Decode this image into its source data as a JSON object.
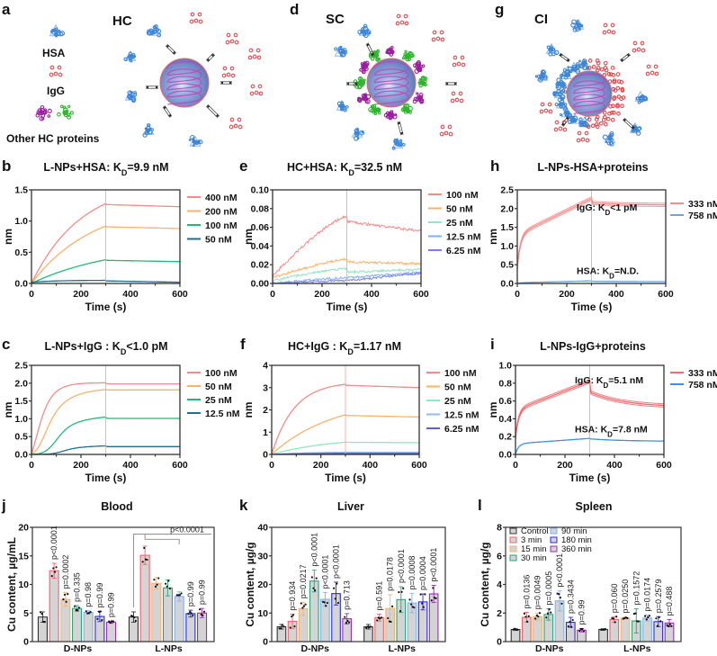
{
  "figure": {
    "schematics": [
      {
        "panel": "a",
        "label": "HC",
        "legend": [
          "HSA",
          "IgG",
          "Other HC proteins"
        ]
      },
      {
        "panel": "d",
        "label": "SC"
      },
      {
        "panel": "g",
        "label": "CI"
      }
    ],
    "colors": {
      "hsa_protein": "#3d86d6",
      "igg_protein": "#e0474c",
      "other_purple": "#9b1fa0",
      "other_green": "#2fb52f",
      "nanoparticle": "#7f95cc",
      "helix": "#b548b5"
    }
  },
  "chart_data": [
    {
      "panel": "b",
      "type": "line",
      "title": "L-NPs+HSA: K",
      "title_sub": "D",
      "title_tail": "=9.9 nM",
      "xlabel": "Time (s)",
      "ylabel": "nm",
      "xlim": [
        0,
        600
      ],
      "ylim": [
        0,
        1.5
      ],
      "xticks": [
        0,
        200,
        400,
        600
      ],
      "yticks": [
        "0.0",
        "0.5",
        "1.0",
        "1.5"
      ],
      "yticks_v": [
        0,
        0.5,
        1.0,
        1.5
      ],
      "switch_time": 300,
      "model": "exp",
      "series": [
        {
          "name": "400 nM",
          "color": "#f28b8b",
          "peak": 1.28,
          "end": 1.23,
          "k": 0.005,
          "noise": 0
        },
        {
          "name": "200 nM",
          "color": "#f8b26a",
          "peak": 0.92,
          "end": 0.88,
          "k": 0.004,
          "noise": 0
        },
        {
          "name": "100 nM",
          "color": "#21b974",
          "peak": 0.38,
          "end": 0.35,
          "k": 0.003,
          "noise": 0
        },
        {
          "name": "50 nM",
          "color": "#1f6e93",
          "peak": 0.05,
          "end": 0.02,
          "k": 0.01,
          "noise": 0,
          "offset": 0.02
        }
      ]
    },
    {
      "panel": "e",
      "type": "line",
      "title": "HC+HSA: K",
      "title_sub": "D",
      "title_tail": "=32.5 nM",
      "xlabel": "Time (s)",
      "ylabel": "nm",
      "xlim": [
        0,
        600
      ],
      "ylim": [
        0,
        0.1
      ],
      "xticks": [
        0,
        200,
        400,
        600
      ],
      "yticks": [
        "0.00",
        "0.02",
        "0.04",
        "0.06",
        "0.08",
        "0.10"
      ],
      "yticks_v": [
        0,
        0.02,
        0.04,
        0.06,
        0.08,
        0.1
      ],
      "switch_time": 300,
      "model": "lin",
      "series": [
        {
          "name": "100 nM",
          "color": "#f28b8b",
          "start": 0.008,
          "peak": 0.072,
          "drop": 0.066,
          "end": 0.056,
          "noise": 0.0015
        },
        {
          "name": "50 nM",
          "color": "#f8b26a",
          "start": 0.006,
          "peak": 0.026,
          "drop": 0.023,
          "end": 0.021,
          "noise": 0.0012
        },
        {
          "name": "25 nM",
          "color": "#93e6c4",
          "start": 0.003,
          "peak": 0.016,
          "drop": 0.012,
          "end": 0.015,
          "noise": 0.0012
        },
        {
          "name": "12.5 nM",
          "color": "#7fb2f0",
          "start": 0.0,
          "peak": 0.006,
          "drop": 0.006,
          "end": 0.012,
          "noise": 0.0012
        },
        {
          "name": "6.25 nM",
          "color": "#7d7df2",
          "start": 0.0,
          "peak": 0.003,
          "drop": 0.003,
          "end": 0.011,
          "noise": 0.001
        }
      ]
    },
    {
      "panel": "h",
      "type": "line",
      "title": "L-NPs-HSA+proteins",
      "xlabel": "Time (s)",
      "ylabel": "nm",
      "xlim": [
        0,
        600
      ],
      "ylim": [
        0,
        2.5
      ],
      "xticks": [
        0,
        200,
        400,
        600
      ],
      "yticks": [
        "0.0",
        "0.5",
        "1.0",
        "1.5",
        "2.0",
        "2.5"
      ],
      "yticks_v": [
        0,
        0.5,
        1.0,
        1.5,
        2.0,
        2.5
      ],
      "switch_time": 300,
      "model": "biphasic",
      "annotations": [
        {
          "text": "IgG: K",
          "sub": "D",
          "tail": "<1 pM",
          "at": [
            240,
            1.95
          ]
        },
        {
          "text": "HSA: K",
          "sub": "D",
          "tail": "=N.D.",
          "at": [
            240,
            0.25
          ]
        }
      ],
      "series": [
        {
          "name": "333 nM",
          "color": "#f28b8b",
          "start": 0.4,
          "fast": 1.3,
          "peak": 2.27,
          "drop": 2.15,
          "end": 2.1,
          "triple": true
        },
        {
          "name": "758 nM",
          "color": "#6aa6ea",
          "start": 0.0,
          "fast": 0.02,
          "peak": 0.07,
          "drop": 0.06,
          "end": 0.05,
          "triple": false
        }
      ]
    },
    {
      "panel": "c",
      "type": "line",
      "title": "L-NPs+IgG : K",
      "title_sub": "D",
      "title_tail": "<1.0 pM",
      "xlabel": "Time (s)",
      "ylabel": "nm",
      "xlim": [
        0,
        600
      ],
      "ylim": [
        0,
        2.5
      ],
      "xticks": [
        0,
        200,
        400,
        600
      ],
      "yticks": [
        "0.0",
        "0.5",
        "1.0",
        "1.5",
        "2.0",
        "2.5"
      ],
      "yticks_v": [
        0,
        0.5,
        1.0,
        1.5,
        2.0,
        2.5
      ],
      "switch_time": 300,
      "model": "sigmoid",
      "series": [
        {
          "name": "100 nM",
          "color": "#f28b8b",
          "peak": 2.01,
          "end": 1.98,
          "k": 0.022,
          "lag": 0
        },
        {
          "name": "50 nM",
          "color": "#f8b26a",
          "peak": 1.82,
          "end": 1.81,
          "k": 0.012,
          "lag": 40
        },
        {
          "name": "25 nM",
          "color": "#21b974",
          "peak": 1.05,
          "end": 1.01,
          "k": 0.009,
          "lag": 90
        },
        {
          "name": "12.5 nM",
          "color": "#1f6e93",
          "peak": 0.24,
          "end": 0.22,
          "k": 0.007,
          "lag": 120
        }
      ]
    },
    {
      "panel": "f",
      "type": "line",
      "title": "HC+IgG : K",
      "title_sub": "D",
      "title_tail": "=1.17 nM",
      "xlabel": "Time (s)",
      "ylabel": "nm",
      "xlim": [
        0,
        600
      ],
      "ylim": [
        0,
        4
      ],
      "xticks": [
        0,
        200,
        400,
        600
      ],
      "yticks": [
        "0",
        "1",
        "2",
        "3",
        "4"
      ],
      "yticks_v": [
        0,
        1,
        2,
        3,
        4
      ],
      "switch_time": 300,
      "model": "exp",
      "series": [
        {
          "name": "100 nM",
          "color": "#f28b8b",
          "peak": 3.15,
          "end": 3.0,
          "k": 0.011,
          "noise": 0
        },
        {
          "name": "50 nM",
          "color": "#f8b26a",
          "peak": 1.78,
          "end": 1.68,
          "k": 0.004,
          "noise": 0
        },
        {
          "name": "25 nM",
          "color": "#93e6c4",
          "peak": 0.55,
          "end": 0.53,
          "k": 0.004,
          "noise": 0
        },
        {
          "name": "12.5 nM",
          "color": "#8fbcf2",
          "peak": 0.1,
          "end": 0.1,
          "k": 0.006,
          "noise": 0
        },
        {
          "name": "6.25 nM",
          "color": "#5b62d9",
          "peak": 0.05,
          "end": 0.05,
          "k": 0.006,
          "noise": 0
        }
      ]
    },
    {
      "panel": "i",
      "type": "line",
      "title": "L-NPs-IgG+proteins",
      "xlabel": "Time (s)",
      "ylabel": "nm",
      "xlim": [
        0,
        600
      ],
      "ylim": [
        0,
        1.0
      ],
      "xticks": [
        0,
        200,
        400,
        600
      ],
      "yticks": [
        "0.0",
        "0.2",
        "0.4",
        "0.6",
        "0.8",
        "1.0"
      ],
      "yticks_v": [
        0,
        0.2,
        0.4,
        0.6,
        0.8,
        1.0
      ],
      "switch_time": 300,
      "model": "biphasic",
      "annotations": [
        {
          "text": "IgG: K",
          "sub": "D",
          "tail": "=5.1 nM",
          "at": [
            240,
            0.8
          ]
        },
        {
          "text": "HSA: K",
          "sub": "D",
          "tail": "=7.8 nM",
          "at": [
            240,
            0.25
          ]
        }
      ],
      "series": [
        {
          "name": "333 nM",
          "color": "#f06b6f",
          "start": 0.18,
          "fast": 0.5,
          "peak": 0.82,
          "drop": 0.7,
          "end": 0.55,
          "triple": true
        },
        {
          "name": "758 nM",
          "color": "#3b8ff0",
          "start": 0.0,
          "fast": 0.12,
          "peak": 0.18,
          "drop": 0.175,
          "end": 0.15,
          "triple": false
        }
      ]
    },
    {
      "panel": "j",
      "type": "bar",
      "title": "Blood",
      "ylabel": "Cu content, µg/mL",
      "ylim": [
        0,
        20
      ],
      "yticks": [
        "0",
        "5",
        "10",
        "15",
        "20"
      ],
      "yticks_v": [
        0,
        5,
        10,
        15,
        20
      ],
      "groups": [
        "D-NPs",
        "L-NPs"
      ],
      "series_names": [
        "Control",
        "3 min",
        "15 min",
        "30 min",
        "90 min",
        "180 min",
        "360 min"
      ],
      "series_colors": [
        "#333333",
        "#f0646a",
        "#f8b26a",
        "#2aa57a",
        "#7fb2f0",
        "#2a2ae0",
        "#9b2fb0"
      ],
      "values": [
        [
          4.3,
          12.4,
          7.4,
          5.8,
          5.1,
          4.4,
          3.4
        ],
        [
          4.3,
          15.1,
          10.2,
          9.4,
          7.9,
          4.9,
          5.0
        ]
      ],
      "errors": [
        [
          0.9,
          1.3,
          1.2,
          0.5,
          0.3,
          0.9,
          0.2
        ],
        [
          0.9,
          1.6,
          1.0,
          1.4,
          0.8,
          0.6,
          0.8
        ]
      ],
      "pvalues": [
        [
          "",
          "p<0.0001",
          "p=0.0002",
          "p=0.335",
          "p=0.98",
          "p=0.99",
          "p=0.99"
        ],
        [
          "",
          "",
          "",
          "",
          "",
          "p=0.99",
          "p=0.99"
        ]
      ],
      "bracket": {
        "text": "p<0.0001"
      }
    },
    {
      "panel": "k",
      "type": "bar",
      "title": "Liver",
      "ylabel": "Cu content, µg/g",
      "ylim": [
        0,
        40
      ],
      "yticks": [
        "0",
        "10",
        "20",
        "30",
        "40"
      ],
      "yticks_v": [
        0,
        10,
        20,
        30,
        40
      ],
      "groups": [
        "D-NPs",
        "L-NPs"
      ],
      "series_names": [
        "Control",
        "3 min",
        "15 min",
        "30 min",
        "90 min",
        "180 min",
        "360 min"
      ],
      "series_colors": [
        "#333333",
        "#f0646a",
        "#f8b26a",
        "#2aa57a",
        "#7fb2f0",
        "#2a2ae0",
        "#9b2fb0"
      ],
      "values": [
        [
          5.2,
          7.1,
          11.5,
          21.2,
          14.8,
          16.8,
          8.0
        ],
        [
          5.2,
          8.4,
          11.6,
          14.7,
          13.5,
          13.9,
          16.7
        ]
      ],
      "errors": [
        [
          0.8,
          2.5,
          2.3,
          3.8,
          2.4,
          4.0,
          1.8
        ],
        [
          0.8,
          1.2,
          4.8,
          4.5,
          3.4,
          2.8,
          3.0
        ]
      ],
      "pvalues": [
        [
          "",
          "p=0.934",
          "p=0.0217",
          "p<0.0001",
          "p<0.0001",
          "p<0.0001",
          "p=0.713"
        ],
        [
          "",
          "p=0.591",
          "p=0.0178",
          "p<0.0001",
          "p=0.0008",
          "p=0.0004",
          "p<0.0001"
        ]
      ]
    },
    {
      "panel": "l",
      "type": "bar",
      "title": "Spleen",
      "ylabel": "Cu content, µg/g",
      "ylim": [
        0,
        8
      ],
      "yticks": [
        "0",
        "2",
        "4",
        "6",
        "8"
      ],
      "yticks_v": [
        0,
        2,
        4,
        6,
        8
      ],
      "groups": [
        "D-NPs",
        "L-NPs"
      ],
      "series_names": [
        "Control",
        "3 min",
        "15 min",
        "30 min",
        "90 min",
        "180 min",
        "360 min"
      ],
      "series_colors": [
        "#333333",
        "#f0646a",
        "#f8b26a",
        "#2aa57a",
        "#7fb2f0",
        "#2a2ae0",
        "#9b2fb0"
      ],
      "values": [
        [
          0.85,
          1.7,
          1.75,
          1.9,
          2.85,
          1.35,
          0.8
        ],
        [
          0.85,
          1.55,
          1.65,
          1.45,
          1.65,
          1.4,
          1.3
        ]
      ],
      "errors": [
        [
          0.05,
          0.35,
          0.25,
          0.4,
          0.7,
          0.35,
          0.12
        ],
        [
          0.05,
          0.2,
          0.08,
          0.85,
          0.2,
          0.35,
          0.25
        ]
      ],
      "pvalues": [
        [
          "",
          "p=0.0136",
          "p=0.0049",
          "p=0.0005",
          "p<0.0001",
          "p=0.3434",
          "p=0.99"
        ],
        [
          "",
          "p=0.060",
          "p=0.0250",
          "p=0.1572",
          "p=0.0174",
          "p=0.2579",
          "p=0.488"
        ]
      ],
      "legend": [
        "Control",
        "3 min",
        "15 min",
        "30 min",
        "90 min",
        "180 min",
        "360 min"
      ]
    }
  ]
}
